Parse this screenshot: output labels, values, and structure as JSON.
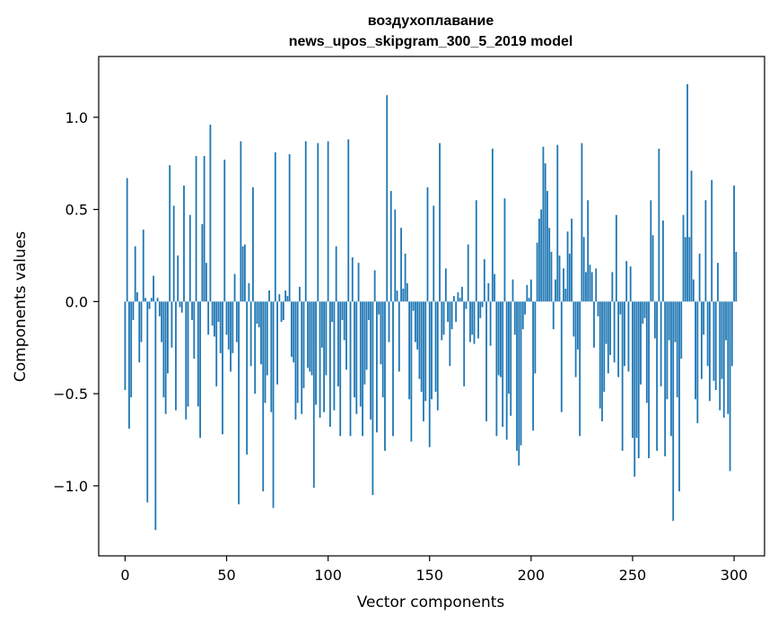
{
  "chart_data": {
    "type": "bar",
    "title_line1": "воздухоплавание",
    "title_line2": "news_upos_skipgram_300_5_2019 model",
    "xlabel": "Vector components",
    "ylabel": "Components values",
    "xlim": [
      -13,
      315
    ],
    "ylim": [
      -1.38,
      1.33
    ],
    "xticks": [
      0,
      50,
      100,
      150,
      200,
      250,
      300
    ],
    "xtick_labels": [
      "0",
      "50",
      "100",
      "150",
      "200",
      "250",
      "300"
    ],
    "yticks": [
      -1.0,
      -0.5,
      0.0,
      0.5,
      1.0
    ],
    "ytick_labels": [
      "−1.0",
      "−0.5",
      "0.0",
      "0.5",
      "1.0"
    ],
    "grid": false,
    "bar_color": "#1f77b4",
    "values": [
      -0.48,
      0.67,
      -0.69,
      -0.52,
      -0.1,
      0.3,
      0.05,
      -0.33,
      -0.22,
      0.39,
      0.02,
      -1.09,
      -0.04,
      0.02,
      0.14,
      -1.24,
      0.02,
      -0.08,
      -0.22,
      -0.52,
      -0.61,
      -0.39,
      0.74,
      -0.25,
      0.52,
      -0.59,
      0.25,
      -0.03,
      -0.06,
      0.63,
      -0.64,
      -0.57,
      0.47,
      -0.1,
      -0.31,
      0.79,
      -0.57,
      -0.74,
      0.42,
      0.79,
      0.21,
      -0.18,
      0.96,
      -0.13,
      -0.19,
      -0.46,
      -0.11,
      -0.28,
      -0.72,
      0.77,
      -0.18,
      -0.26,
      -0.38,
      -0.28,
      0.15,
      -0.22,
      -1.1,
      0.87,
      0.3,
      0.31,
      -0.83,
      0.1,
      -0.35,
      0.62,
      -0.5,
      -0.12,
      -0.14,
      -0.34,
      -1.03,
      -0.55,
      -0.4,
      0.06,
      -0.6,
      -1.12,
      0.81,
      -0.45,
      0.04,
      -0.11,
      -0.1,
      0.06,
      0.03,
      0.8,
      -0.3,
      -0.33,
      -0.64,
      -0.55,
      0.08,
      -0.61,
      -0.47,
      0.87,
      -0.36,
      -0.38,
      -0.4,
      -1.01,
      -0.56,
      0.86,
      -0.63,
      -0.25,
      -0.6,
      -0.4,
      0.87,
      -0.68,
      -0.11,
      -0.59,
      0.3,
      -0.46,
      -0.73,
      -0.1,
      -0.21,
      -0.37,
      0.88,
      -0.73,
      0.24,
      -0.52,
      -0.61,
      0.21,
      -0.57,
      -0.73,
      -0.45,
      -0.37,
      -0.1,
      -0.64,
      -1.05,
      0.17,
      -0.71,
      -0.07,
      -0.34,
      -0.52,
      -0.81,
      1.12,
      -0.22,
      0.6,
      -0.73,
      0.5,
      0.06,
      -0.38,
      0.4,
      0.07,
      0.26,
      0.1,
      -0.53,
      -0.76,
      -0.05,
      -0.22,
      -0.26,
      -0.42,
      -0.49,
      -0.65,
      -0.54,
      0.62,
      -0.79,
      -0.53,
      0.52,
      -0.49,
      -0.59,
      0.86,
      -0.21,
      -0.18,
      0.18,
      -0.11,
      -0.35,
      -0.15,
      0.03,
      -0.11,
      0.05,
      0.02,
      0.08,
      -0.46,
      -0.04,
      0.31,
      -0.22,
      -0.18,
      -0.23,
      0.55,
      -0.2,
      -0.09,
      -0.03,
      0.23,
      -0.65,
      0.1,
      -0.24,
      0.83,
      0.15,
      -0.73,
      -0.4,
      -0.41,
      -0.68,
      0.56,
      -0.75,
      -0.5,
      -0.62,
      0.12,
      -0.18,
      -0.81,
      -0.89,
      -0.78,
      -0.15,
      -0.07,
      0.09,
      0.02,
      0.12,
      -0.7,
      -0.39,
      0.32,
      0.45,
      0.5,
      0.84,
      0.75,
      0.6,
      0.4,
      0.27,
      -0.15,
      0.12,
      0.85,
      0.25,
      -0.6,
      0.18,
      0.07,
      0.38,
      0.26,
      0.45,
      -0.19,
      -0.41,
      -0.26,
      -0.73,
      0.86,
      0.35,
      0.16,
      0.55,
      0.2,
      0.16,
      -0.25,
      0.18,
      -0.08,
      -0.58,
      -0.65,
      -0.49,
      -0.23,
      -0.39,
      -0.29,
      0.16,
      -0.33,
      0.47,
      -0.41,
      -0.07,
      -0.81,
      -0.35,
      0.22,
      -0.38,
      0.19,
      -0.74,
      -0.95,
      -0.74,
      -0.85,
      -0.45,
      -0.12,
      -0.09,
      -0.55,
      -0.85,
      0.55,
      0.36,
      -0.2,
      -0.81,
      0.83,
      -0.46,
      0.44,
      -0.84,
      -0.53,
      -0.21,
      -0.73,
      -1.19,
      -0.22,
      -0.52,
      -1.03,
      -0.31,
      0.47,
      0.35,
      1.18,
      0.35,
      0.71,
      0.12,
      -0.53,
      -0.66,
      0.26,
      -0.42,
      -0.18,
      0.55,
      -0.35,
      -0.54,
      0.66,
      -0.43,
      -0.48,
      0.21,
      -0.59,
      -0.42,
      -0.63,
      -0.21,
      -0.61,
      -0.92,
      -0.35,
      0.63,
      0.27
    ]
  }
}
